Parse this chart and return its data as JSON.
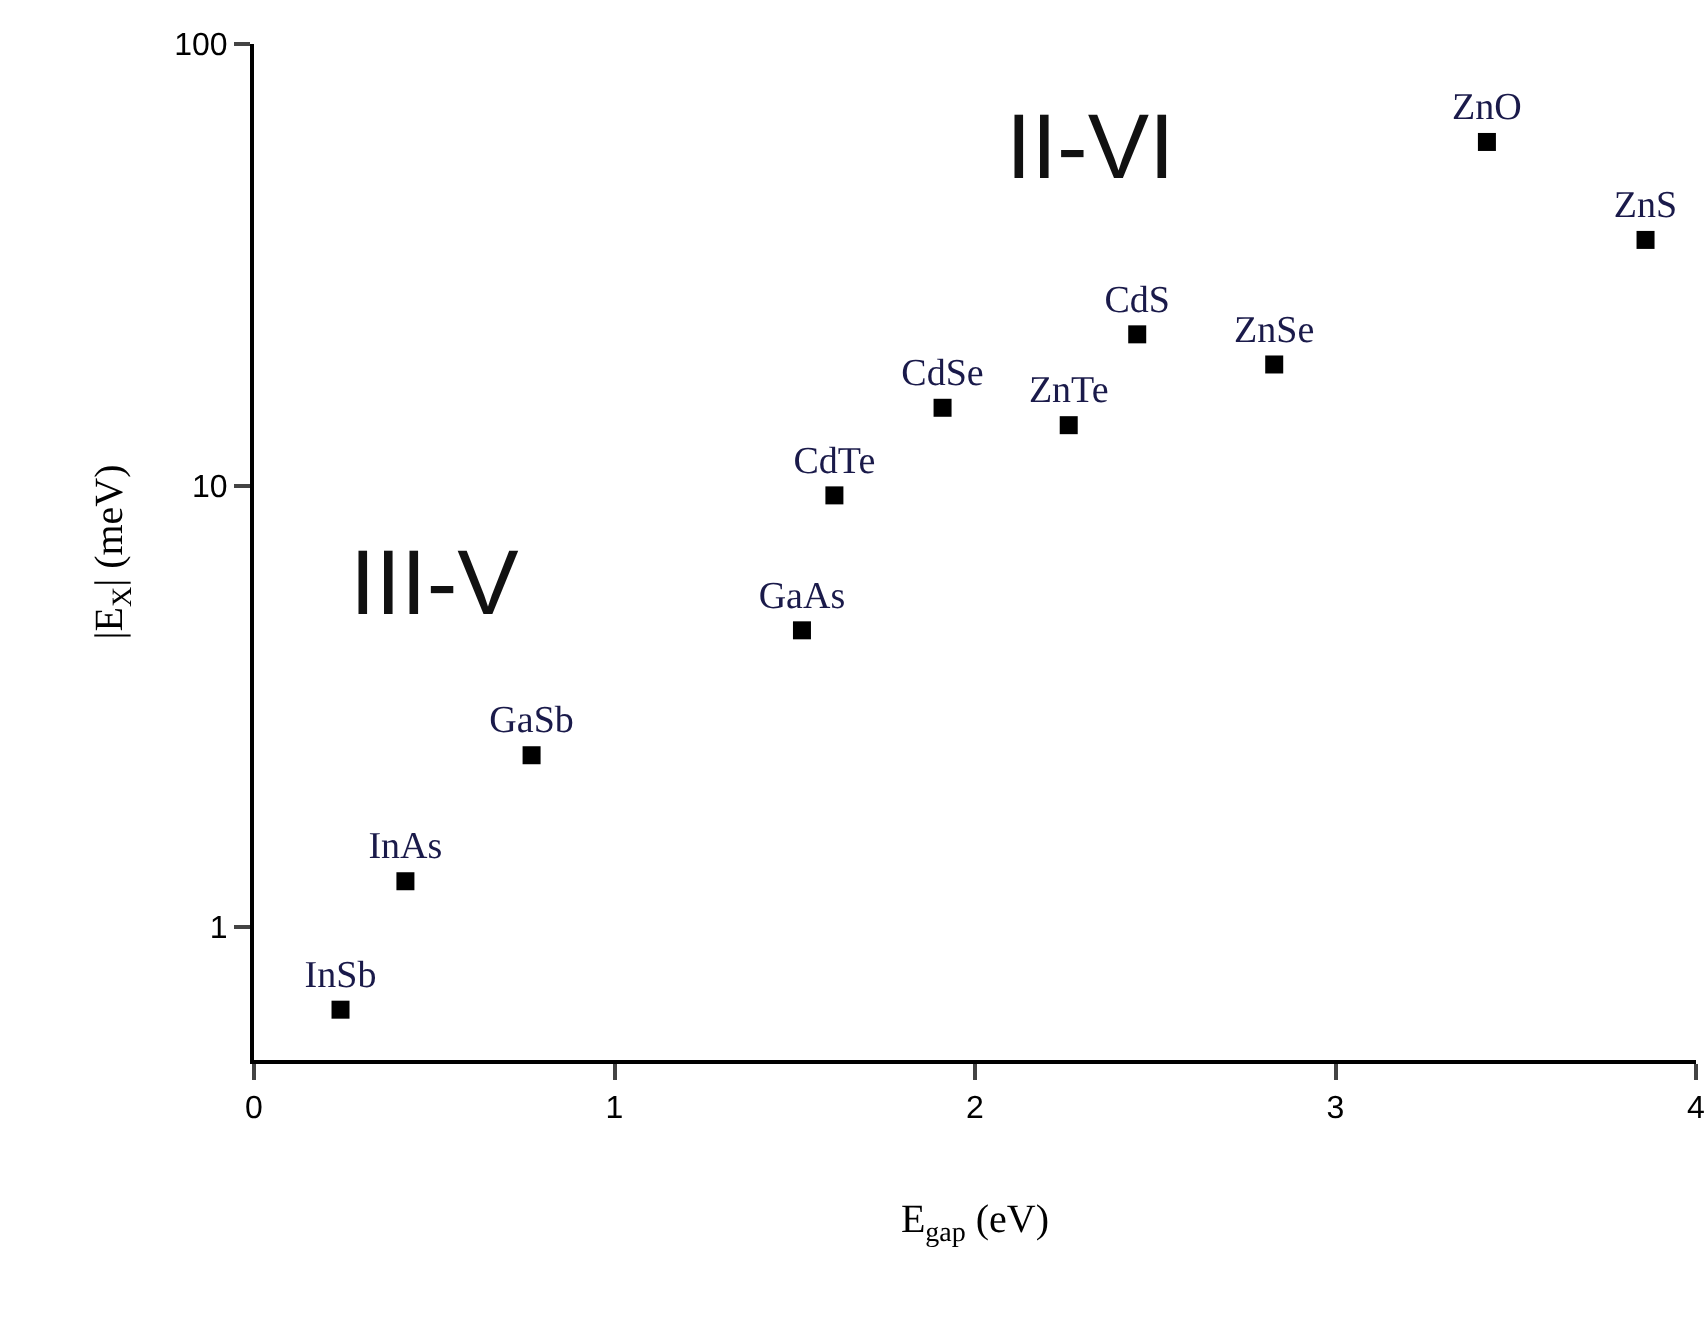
{
  "chart_data": {
    "type": "scatter",
    "xlabel": "E$_{gap}$ (eV)",
    "ylabel": "|E$_{X}$| (meV)",
    "x": [
      0.24,
      0.42,
      0.77,
      1.52,
      1.61,
      1.91,
      2.26,
      2.45,
      2.83,
      3.42,
      3.86
    ],
    "series": [
      {
        "color": "#000000",
        "values": [
          0.65,
          1.27,
          2.45,
          4.7,
          9.5,
          15,
          13.7,
          22,
          18.8,
          60,
          36
        ],
        "value_labels": [
          "InSb",
          "InAs",
          "GaSb",
          "GaAs",
          "CdTe",
          "CdSe",
          "ZnTe",
          "CdS",
          "ZnSe",
          "ZnO",
          "ZnS"
        ]
      }
    ],
    "annotations": [
      "III-V",
      "II-VI"
    ],
    "xlim": [
      0,
      4
    ],
    "xticks": [
      0,
      1,
      2,
      3,
      4
    ],
    "ylim": [
      0.5,
      100
    ],
    "yticks": [
      1,
      10,
      100
    ],
    "log": "y",
    "marker": "square",
    "grid": false
  }
}
